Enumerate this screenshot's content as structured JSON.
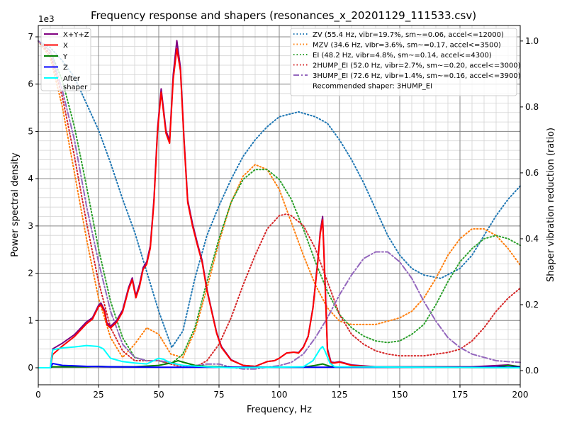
{
  "chart_data": {
    "type": "line",
    "title": "Frequency response and shapers (resonances_x_20201129_111533.csv)",
    "xlabel": "Frequency, Hz",
    "ylabel": "Power spectral density",
    "ylabel_right": "Shaper vibration reduction (ratio)",
    "y_offset_label": "1e3",
    "xlim": [
      0,
      200
    ],
    "ylim": [
      -0.36,
      7.24
    ],
    "ylim_right": [
      -0.043,
      1.047
    ],
    "xticks": [
      0,
      25,
      50,
      75,
      100,
      125,
      150,
      175,
      200
    ],
    "yticks": [
      0,
      1,
      2,
      3,
      4,
      5,
      6,
      7
    ],
    "yticks_right": [
      "0.0",
      "0.2",
      "0.4",
      "0.6",
      "0.8",
      "1.0"
    ],
    "grid": "major and minor",
    "legend_left_placement": "top-left",
    "legend_right_placement": "top-right",
    "psd_series": [
      {
        "name": "X+Y+Z",
        "color": "#800080",
        "x": [
          0,
          5,
          6,
          10,
          15,
          20,
          22.5,
          25,
          26,
          27.5,
          28.5,
          30,
          32.5,
          35,
          37.5,
          39,
          40.5,
          42,
          43.5,
          45,
          46.5,
          48,
          49.5,
          51,
          53,
          54.5,
          56,
          57.5,
          59,
          60.5,
          62,
          64,
          66,
          68,
          70,
          72,
          74,
          76,
          80,
          85,
          90,
          95,
          98,
          100,
          103,
          106,
          108,
          110,
          112,
          114,
          116,
          117,
          118,
          119,
          120,
          121.5,
          123,
          125,
          130,
          140,
          160,
          180,
          195,
          200
        ],
        "y": [
          0,
          0,
          0.4,
          0.52,
          0.7,
          0.97,
          1.06,
          1.32,
          1.37,
          1.22,
          0.95,
          0.88,
          1.0,
          1.22,
          1.7,
          1.9,
          1.52,
          1.76,
          2.12,
          2.24,
          2.58,
          3.56,
          5.06,
          5.9,
          5.02,
          4.8,
          6.2,
          6.92,
          6.35,
          4.84,
          3.55,
          3.05,
          2.64,
          2.27,
          1.66,
          1.2,
          0.75,
          0.45,
          0.17,
          0.05,
          0.03,
          0.13,
          0.15,
          0.2,
          0.31,
          0.33,
          0.32,
          0.44,
          0.67,
          1.28,
          2.27,
          2.88,
          3.2,
          1.85,
          0.4,
          0.12,
          0.11,
          0.13,
          0.06,
          0.02,
          0.02,
          0.02,
          0.06,
          0.02
        ]
      },
      {
        "name": "X",
        "color": "#ff0000",
        "x": [
          0,
          5,
          6,
          10,
          15,
          20,
          22.5,
          25,
          26,
          27.5,
          28.5,
          30,
          32.5,
          35,
          37.5,
          39,
          40.5,
          42,
          43.5,
          45,
          46.5,
          48,
          49.5,
          51,
          53,
          54.5,
          56,
          57.5,
          59,
          60.5,
          62,
          64,
          66,
          68,
          70,
          72,
          74,
          76,
          80,
          85,
          90,
          95,
          98,
          100,
          103,
          106,
          108,
          110,
          112,
          114,
          116,
          117,
          118,
          119,
          120,
          121.5,
          123,
          125,
          130,
          140,
          200
        ],
        "y": [
          0,
          0,
          0.28,
          0.46,
          0.66,
          0.93,
          1.03,
          1.29,
          1.33,
          1.18,
          0.91,
          0.84,
          0.96,
          1.18,
          1.66,
          1.86,
          1.48,
          1.71,
          2.08,
          2.19,
          2.53,
          3.5,
          5.0,
          5.83,
          4.96,
          4.75,
          6.1,
          6.75,
          6.28,
          4.78,
          3.5,
          3.0,
          2.6,
          2.23,
          1.63,
          1.18,
          0.73,
          0.43,
          0.16,
          0.05,
          0.03,
          0.13,
          0.15,
          0.2,
          0.31,
          0.33,
          0.31,
          0.43,
          0.66,
          1.26,
          2.23,
          2.83,
          3.13,
          1.78,
          0.36,
          0.1,
          0.1,
          0.12,
          0.05,
          0.01,
          0
        ]
      },
      {
        "name": "Y",
        "color": "#008000",
        "x": [
          0,
          5,
          6,
          10,
          20,
          25,
          30,
          40,
          50,
          55,
          58,
          60,
          65,
          70,
          80,
          110,
          115,
          118,
          121,
          125,
          190,
          195,
          200
        ],
        "y": [
          0,
          0,
          0.02,
          0.02,
          0.02,
          0.03,
          0.02,
          0.02,
          0.05,
          0.1,
          0.15,
          0.12,
          0.05,
          0.03,
          0.01,
          0.01,
          0.05,
          0.08,
          0.03,
          0.01,
          0.01,
          0.05,
          0.02
        ]
      },
      {
        "name": "Z",
        "color": "#0000ff",
        "x": [
          0,
          5,
          6,
          8,
          10,
          15,
          20,
          30,
          50,
          80,
          120,
          200
        ],
        "y": [
          0,
          0,
          0.09,
          0.07,
          0.05,
          0.04,
          0.03,
          0.02,
          0.01,
          0.01,
          0.01,
          0.01
        ]
      },
      {
        "name": "After\nshaper",
        "color": "#00ffff",
        "x": [
          0,
          5,
          6,
          10,
          15,
          20,
          25,
          27,
          30,
          35,
          40,
          45,
          50,
          52,
          55,
          58,
          60,
          70,
          80,
          110,
          114,
          117,
          118,
          119,
          121,
          123,
          200
        ],
        "y": [
          0,
          0,
          0.38,
          0.42,
          0.44,
          0.47,
          0.45,
          0.4,
          0.2,
          0.13,
          0.1,
          0.08,
          0.2,
          0.18,
          0.1,
          0.07,
          0.05,
          0.02,
          0,
          0.02,
          0.15,
          0.4,
          0.45,
          0.35,
          0.1,
          0.02,
          0
        ]
      }
    ],
    "shaper_series": [
      {
        "name": "ZV (55.4 Hz, vibr=19.7%, sm~=0.06, accel<=12000)",
        "color": "#1f77b4",
        "style": "dotted",
        "x": [
          0,
          5,
          10,
          15,
          20,
          25,
          30,
          35,
          40,
          45,
          50,
          55.4,
          60,
          65,
          70,
          75,
          80,
          85,
          90,
          95,
          100,
          108,
          115,
          120,
          125,
          130,
          135,
          140,
          145,
          150,
          155,
          160,
          167,
          175,
          180,
          185,
          190,
          195,
          200
        ],
        "y": [
          1.0,
          0.98,
          0.94,
          0.89,
          0.81,
          0.73,
          0.63,
          0.52,
          0.42,
          0.3,
          0.18,
          0.07,
          0.12,
          0.28,
          0.41,
          0.5,
          0.58,
          0.65,
          0.7,
          0.74,
          0.77,
          0.785,
          0.77,
          0.75,
          0.7,
          0.64,
          0.57,
          0.49,
          0.41,
          0.35,
          0.31,
          0.29,
          0.28,
          0.31,
          0.35,
          0.41,
          0.47,
          0.52,
          0.56
        ]
      },
      {
        "name": "MZV (34.6 Hz, vibr=3.6%, sm~=0.17, accel<=3500)",
        "color": "#ff7f0e",
        "style": "dotted",
        "x": [
          0,
          5,
          10,
          15,
          20,
          25,
          30,
          35,
          40,
          45,
          50,
          55,
          60,
          65,
          70,
          75,
          80,
          85,
          90,
          95,
          100,
          105,
          110,
          115,
          120,
          125,
          130,
          140,
          145,
          150,
          155,
          160,
          165,
          170,
          175,
          180,
          185,
          190,
          195,
          200
        ],
        "y": [
          1.0,
          0.95,
          0.8,
          0.6,
          0.4,
          0.22,
          0.1,
          0.04,
          0.08,
          0.13,
          0.11,
          0.05,
          0.04,
          0.12,
          0.25,
          0.39,
          0.51,
          0.59,
          0.625,
          0.61,
          0.55,
          0.45,
          0.35,
          0.26,
          0.19,
          0.15,
          0.14,
          0.14,
          0.15,
          0.16,
          0.18,
          0.22,
          0.28,
          0.35,
          0.4,
          0.43,
          0.43,
          0.41,
          0.37,
          0.32
        ]
      },
      {
        "name": "EI (48.2 Hz, vibr=4.8%, sm~=0.14, accel<=4300)",
        "color": "#2ca02c",
        "style": "dotted",
        "x": [
          0,
          5,
          10,
          15,
          20,
          25,
          30,
          35,
          40,
          45,
          50,
          55,
          60,
          65,
          70,
          75,
          80,
          85,
          90,
          95,
          100,
          105,
          110,
          115,
          120,
          125,
          130,
          135,
          140,
          145,
          150,
          155,
          160,
          165,
          170,
          175,
          180,
          185,
          190,
          195,
          200
        ],
        "y": [
          1.0,
          0.97,
          0.88,
          0.74,
          0.56,
          0.37,
          0.21,
          0.1,
          0.04,
          0.03,
          0.03,
          0.02,
          0.05,
          0.13,
          0.27,
          0.4,
          0.51,
          0.58,
          0.61,
          0.61,
          0.58,
          0.52,
          0.43,
          0.33,
          0.24,
          0.17,
          0.13,
          0.105,
          0.09,
          0.085,
          0.09,
          0.11,
          0.14,
          0.2,
          0.27,
          0.33,
          0.37,
          0.4,
          0.41,
          0.4,
          0.38
        ]
      },
      {
        "name": "2HUMP_EI (52.0 Hz, vibr=2.7%, sm~=0.20, accel<=3000)",
        "color": "#d62728",
        "style": "dotted",
        "x": [
          0,
          5,
          10,
          15,
          20,
          25,
          30,
          35,
          40,
          45,
          50,
          55,
          60,
          65,
          70,
          75,
          80,
          85,
          90,
          95,
          100,
          103,
          105,
          110,
          115,
          120,
          125,
          130,
          135,
          140,
          145,
          150,
          160,
          170,
          175,
          180,
          185,
          190,
          195,
          200
        ],
        "y": [
          1.0,
          0.96,
          0.83,
          0.65,
          0.45,
          0.27,
          0.13,
          0.06,
          0.03,
          0.03,
          0.03,
          0.02,
          0.01,
          0.01,
          0.03,
          0.08,
          0.16,
          0.26,
          0.35,
          0.43,
          0.47,
          0.475,
          0.47,
          0.44,
          0.37,
          0.27,
          0.17,
          0.11,
          0.08,
          0.06,
          0.05,
          0.045,
          0.045,
          0.055,
          0.065,
          0.09,
          0.13,
          0.18,
          0.22,
          0.25
        ]
      },
      {
        "name": "3HUMP_EI (72.6 Hz, vibr=1.4%, sm~=0.16, accel<=3900)",
        "color": "#9467bd",
        "style": "dashdot",
        "x": [
          0,
          5,
          10,
          15,
          20,
          25,
          30,
          35,
          40,
          45,
          50,
          55,
          60,
          65,
          70,
          75,
          80,
          85,
          90,
          95,
          100,
          105,
          110,
          115,
          120,
          125,
          130,
          135,
          140,
          145,
          150,
          155,
          160,
          165,
          170,
          175,
          180,
          185,
          190,
          195,
          200
        ],
        "y": [
          1.0,
          0.97,
          0.85,
          0.7,
          0.5,
          0.33,
          0.18,
          0.08,
          0.04,
          0.03,
          0.03,
          0.025,
          0.015,
          0.015,
          0.02,
          0.02,
          0.01,
          0.005,
          0.005,
          0.01,
          0.015,
          0.025,
          0.05,
          0.1,
          0.16,
          0.23,
          0.29,
          0.34,
          0.36,
          0.36,
          0.33,
          0.28,
          0.21,
          0.15,
          0.1,
          0.07,
          0.05,
          0.04,
          0.03,
          0.027,
          0.025
        ]
      }
    ],
    "recommendation": "Recommended shaper: 3HUMP_EI"
  }
}
